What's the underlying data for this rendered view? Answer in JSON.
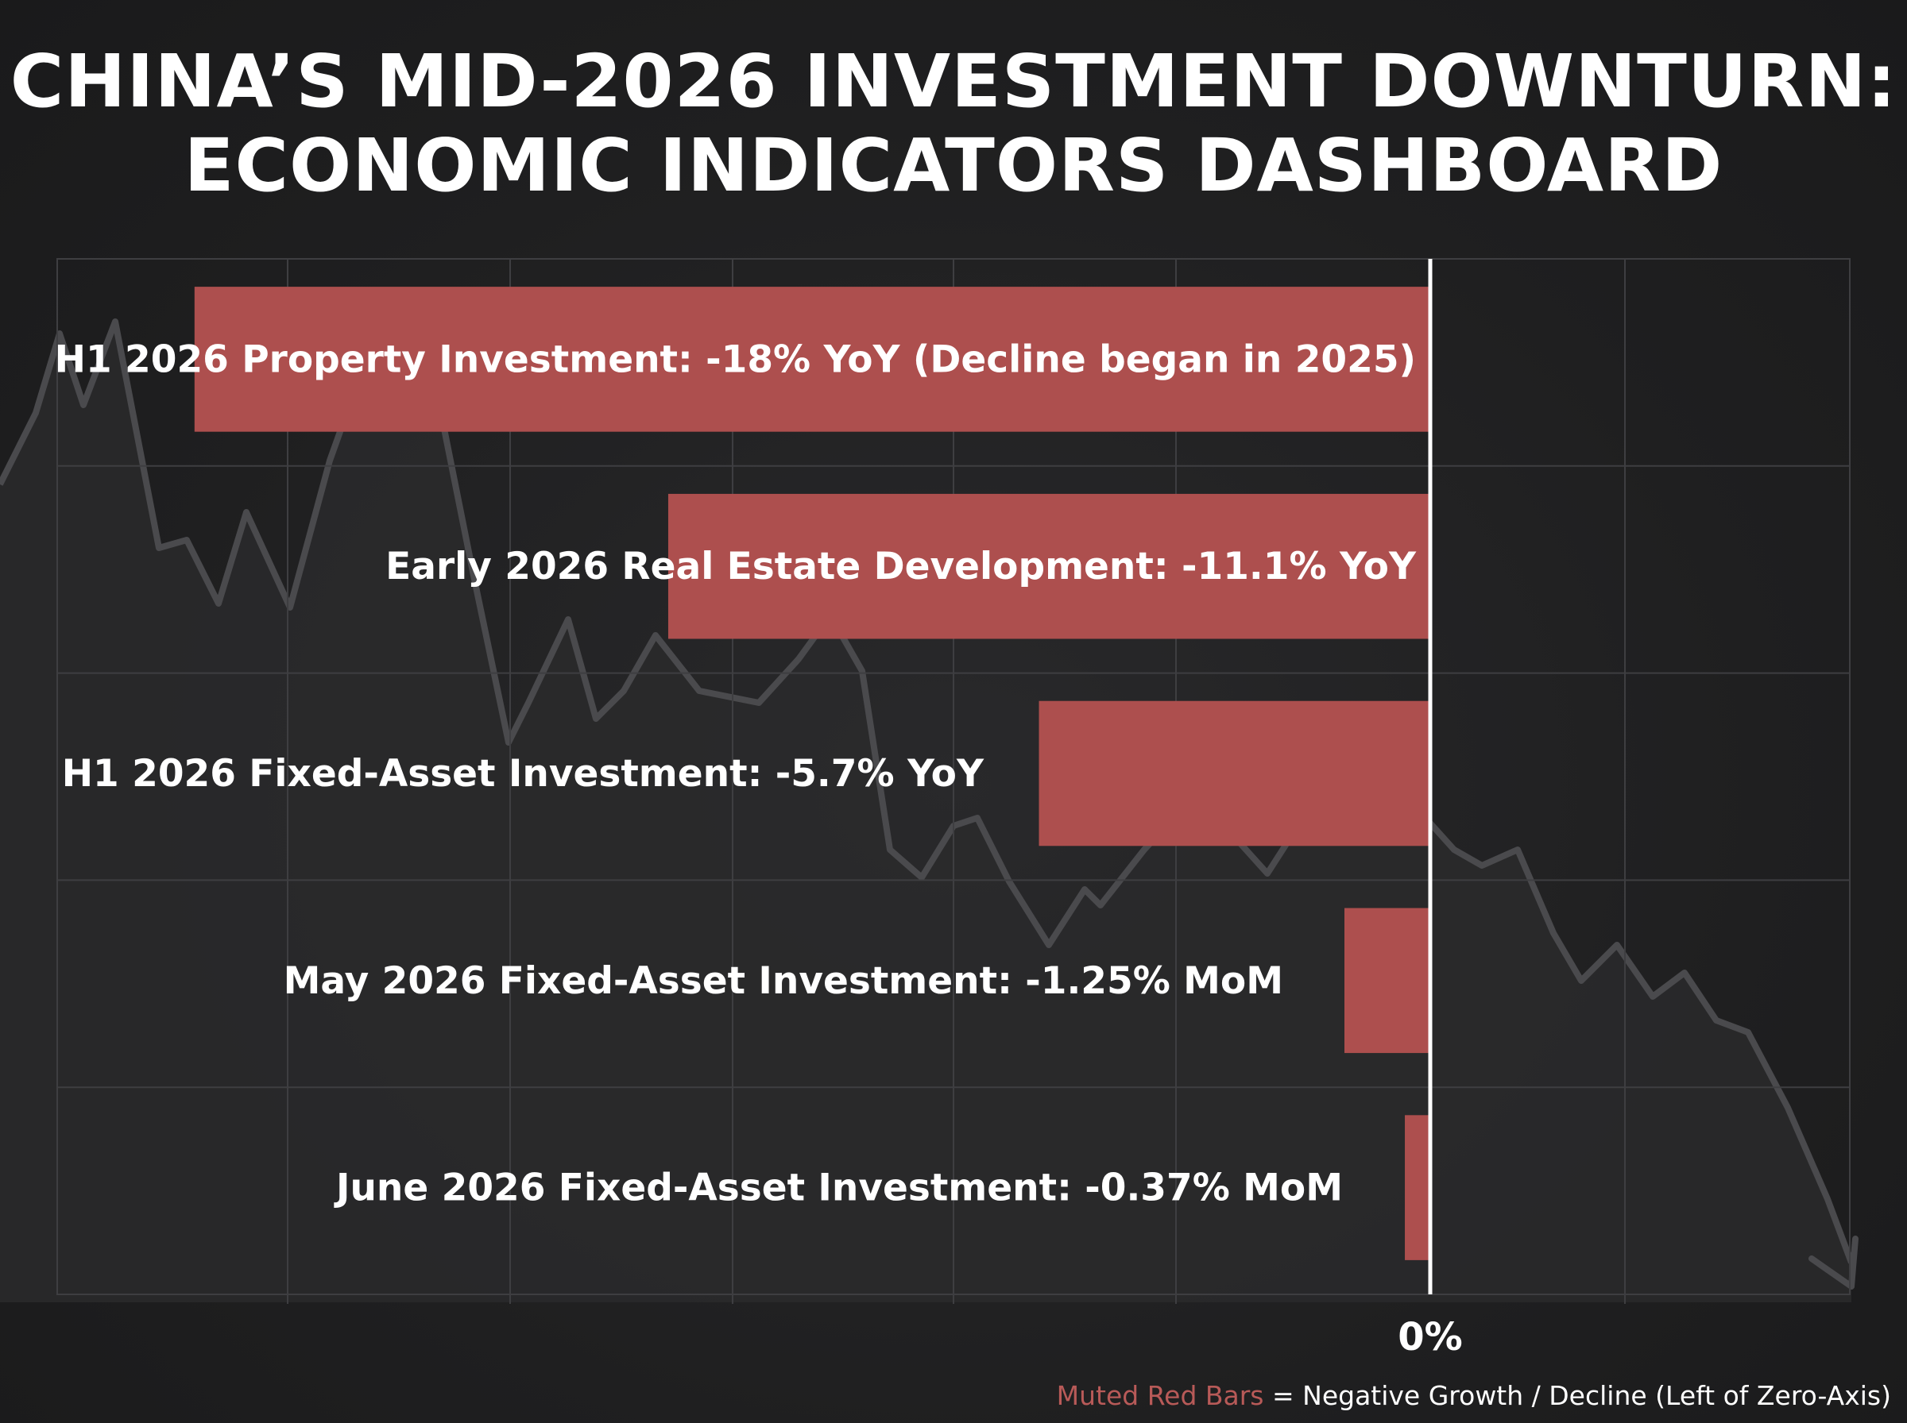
{
  "title_lines": [
    "CHINA’S MID-2026 INVESTMENT DOWNTURN:",
    "ECONOMIC INDICATORS DASHBOARD"
  ],
  "colors": {
    "background": "#1f1f20",
    "bar": "#ad4f4e",
    "zero_axis": "#ffffff",
    "grid": "#3e3e41",
    "trend_line": "#4a4a4d",
    "legend_key": "#b85a58"
  },
  "legend": {
    "key": "Muted Red Bars",
    "description": " = Negative Growth / Decline (Left of Zero-Axis)"
  },
  "chart_data": {
    "type": "bar",
    "orientation": "horizontal",
    "title": "CHINA’S MID-2026 INVESTMENT DOWNTURN: ECONOMIC INDICATORS DASHBOARD",
    "categories": [
      "H1 2026 Property Investment: -18% YoY (Decline began in 2025)",
      "Early 2026 Real Estate Development: -11.1% YoY",
      "H1 2026 Fixed-Asset Investment: -5.7% YoY",
      "May 2026 Fixed-Asset Investment: -1.25% MoM",
      "June 2026 Fixed-Asset Investment: -0.37% MoM"
    ],
    "values": [
      -18,
      -11.1,
      -5.7,
      -1.25,
      -0.37
    ],
    "xlim": [
      -20,
      6
    ],
    "zero_axis_label": "0%",
    "grid": true,
    "background_trend": "declining line, decorative"
  }
}
